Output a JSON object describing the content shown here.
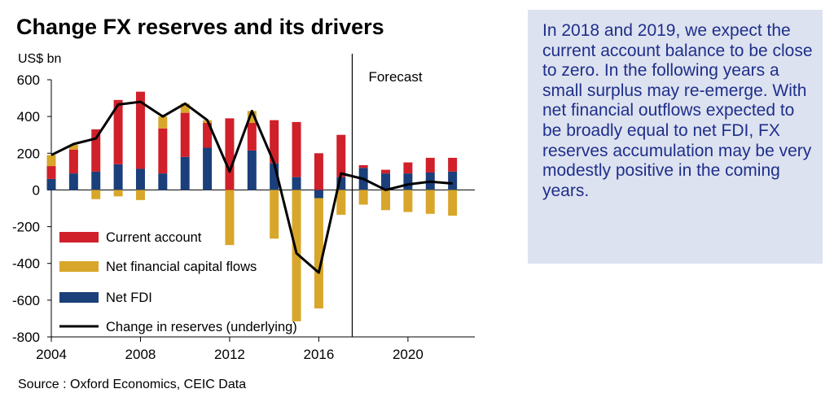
{
  "chart_data": {
    "type": "bar",
    "stacked": true,
    "title": "Change FX reserves and its drivers",
    "ylabel": "US$ bn",
    "ylim": [
      -800,
      600
    ],
    "yticks": [
      600,
      400,
      200,
      0,
      -200,
      -400,
      -600,
      -800
    ],
    "xlim": [
      2004,
      2023
    ],
    "xticks": [
      2004,
      2008,
      2012,
      2016,
      2020
    ],
    "x": [
      2004,
      2005,
      2006,
      2007,
      2008,
      2009,
      2010,
      2011,
      2012,
      2013,
      2014,
      2015,
      2016,
      2017,
      2018,
      2019,
      2020,
      2021,
      2022
    ],
    "series": [
      {
        "name": "Current account",
        "color": "#d0202a",
        "kind": "bar",
        "values": [
          70,
          130,
          230,
          350,
          420,
          245,
          240,
          135,
          390,
          150,
          235,
          300,
          200,
          230,
          15,
          20,
          60,
          80,
          75
        ]
      },
      {
        "name": "Net financial capital flows",
        "color": "#d8a62a",
        "kind": "bar",
        "values": [
          60,
          25,
          -50,
          -35,
          -55,
          65,
          50,
          15,
          -300,
          65,
          -265,
          -715,
          -600,
          -135,
          -80,
          -110,
          -120,
          -130,
          -140
        ]
      },
      {
        "name": "Net FDI",
        "color": "#1a3f7a",
        "kind": "bar",
        "values": [
          60,
          90,
          100,
          140,
          115,
          90,
          180,
          230,
          0,
          215,
          145,
          70,
          -45,
          70,
          120,
          90,
          90,
          95,
          100
        ]
      },
      {
        "name": "Change in reserves (underlying)",
        "color": "#000000",
        "kind": "line",
        "values": [
          190,
          250,
          280,
          465,
          480,
          400,
          470,
          380,
          100,
          430,
          145,
          -345,
          -450,
          90,
          60,
          0,
          30,
          45,
          35
        ]
      }
    ],
    "forecast_label": "Forecast",
    "forecast_start": 2017.5,
    "legend_position": "lower-left",
    "grid": false
  },
  "source": "Source : Oxford Economics, CEIC Data",
  "note": "In 2018 and 2019, we expect the current account balance to be close to zero. In the following years a small surplus may re-emerge. With net financial outflows expected to be broadly equal to net FDI, FX reserves accumulation may be very modestly positive in the coming years."
}
